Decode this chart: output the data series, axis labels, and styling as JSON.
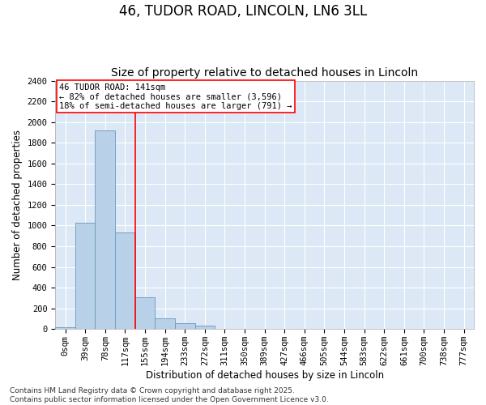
{
  "title_line1": "46, TUDOR ROAD, LINCOLN, LN6 3LL",
  "title_line2": "Size of property relative to detached houses in Lincoln",
  "xlabel": "Distribution of detached houses by size in Lincoln",
  "ylabel": "Number of detached properties",
  "categories": [
    "0sqm",
    "39sqm",
    "78sqm",
    "117sqm",
    "155sqm",
    "194sqm",
    "233sqm",
    "272sqm",
    "311sqm",
    "350sqm",
    "389sqm",
    "427sqm",
    "466sqm",
    "505sqm",
    "544sqm",
    "583sqm",
    "622sqm",
    "661sqm",
    "700sqm",
    "738sqm",
    "777sqm"
  ],
  "values": [
    20,
    1025,
    1920,
    935,
    310,
    105,
    55,
    30,
    5,
    0,
    0,
    0,
    0,
    0,
    0,
    0,
    0,
    0,
    0,
    0,
    0
  ],
  "bar_color": "#b8d0e8",
  "bar_edgecolor": "#6699bb",
  "vline_x": 3.5,
  "vline_color": "red",
  "annotation_text": "46 TUDOR ROAD: 141sqm\n← 82% of detached houses are smaller (3,596)\n18% of semi-detached houses are larger (791) →",
  "annotation_box_color": "white",
  "annotation_box_edgecolor": "red",
  "ylim": [
    0,
    2400
  ],
  "yticks": [
    0,
    200,
    400,
    600,
    800,
    1000,
    1200,
    1400,
    1600,
    1800,
    2000,
    2200,
    2400
  ],
  "background_color": "#dce8f5",
  "grid_color": "white",
  "footer_text": "Contains HM Land Registry data © Crown copyright and database right 2025.\nContains public sector information licensed under the Open Government Licence v3.0.",
  "title_fontsize": 12,
  "subtitle_fontsize": 10,
  "axis_label_fontsize": 8.5,
  "tick_fontsize": 7.5,
  "annotation_fontsize": 7.5,
  "footer_fontsize": 6.5
}
